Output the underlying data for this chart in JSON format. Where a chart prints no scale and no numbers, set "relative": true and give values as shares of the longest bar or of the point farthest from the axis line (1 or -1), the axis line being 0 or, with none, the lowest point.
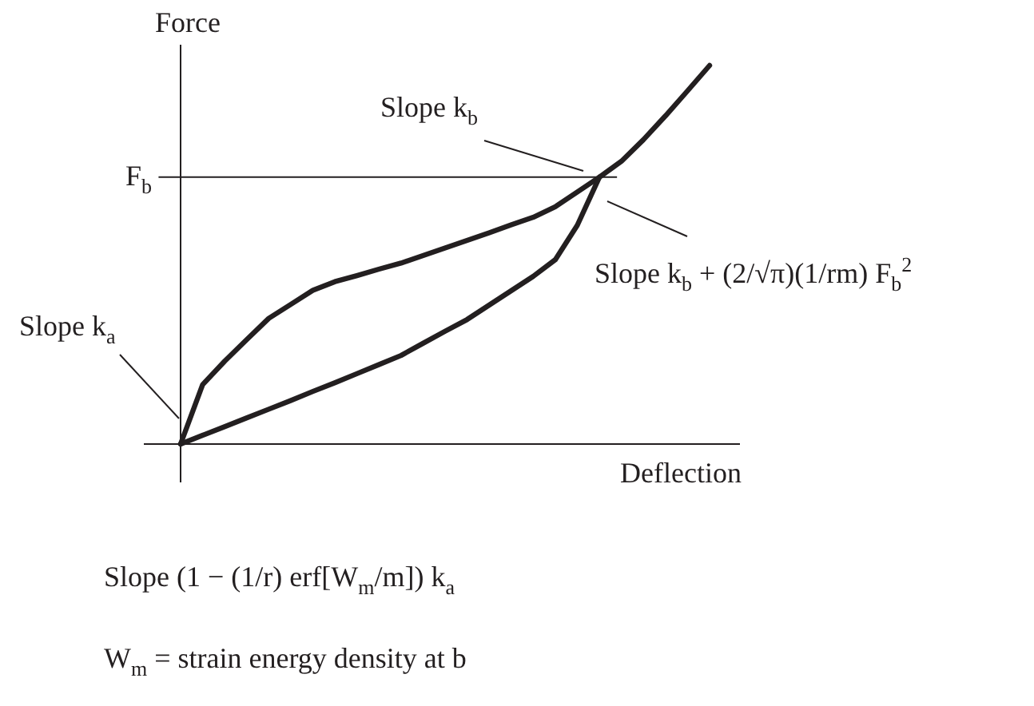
{
  "chart_data": {
    "type": "line",
    "relative": true,
    "xlabel": "Deflection",
    "ylabel": "Force",
    "categories": [
      null,
      null,
      null,
      null,
      null,
      null,
      null,
      null,
      null,
      null,
      null,
      null,
      null,
      null,
      null,
      null,
      null,
      null,
      null,
      null,
      null,
      null,
      null,
      null,
      null
    ],
    "series": [
      {
        "color": "#231f20",
        "values": [
          0,
          0.157,
          0.219,
          0.276,
          0.332,
          0.369,
          0.406,
          0.429,
          0.445,
          0.462,
          0.478,
          0.498,
          0.518,
          0.538,
          0.558,
          0.579,
          0.599,
          0.627,
          0.666,
          0.705,
          0.747,
          0.804,
          0.867,
          0.933,
          1.0
        ]
      },
      {
        "color": "#231f20",
        "values": [
          0,
          0.023,
          0.046,
          0.069,
          0.092,
          0.115,
          0.139,
          0.162,
          0.186,
          0.21,
          0.234,
          0.266,
          0.298,
          0.329,
          0.367,
          0.405,
          0.443,
          0.487,
          0.578,
          0.705,
          null,
          null,
          null,
          null,
          null
        ]
      }
    ],
    "ref_lines": [
      {
        "axis": "y",
        "value": 0.705,
        "label": "F$_{b}$",
        "color": "#231f20"
      }
    ],
    "annotations": [
      "Slope k$_{b}$",
      "Slope k$_{b}$ + (2/√π)(1/rm) F$_{b}$$^{2}$",
      "Slope k$_{a}$",
      "Slope (1 − (1/r) erf[W$_{m}$/m]) k$_{a}$",
      "W$_{m}$ = strain energy density at b"
    ],
    "grid": false,
    "line_style": "solid"
  }
}
